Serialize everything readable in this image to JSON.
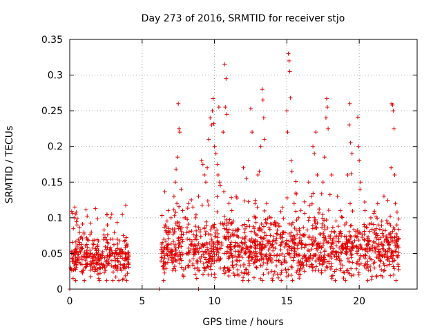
{
  "chart_data": {
    "type": "scatter",
    "title": "Day 273 of 2016, SRMTID for receiver stjo",
    "xlabel": "GPS time / hours",
    "ylabel": "SRMTID / TECUs",
    "xlim": [
      0,
      24
    ],
    "ylim": [
      0,
      0.35
    ],
    "grid": true,
    "x_ticks": [
      0,
      5,
      10,
      15,
      20
    ],
    "x_tick_labels": [
      "0",
      "5",
      "10",
      "15",
      "20"
    ],
    "y_ticks": [
      0,
      0.05,
      0.1,
      0.15,
      0.2,
      0.25,
      0.3,
      0.35
    ],
    "y_tick_labels": [
      "0",
      "0.05",
      "0.1",
      "0.15",
      "0.2",
      "0.25",
      "0.3",
      "0.35"
    ],
    "marker": "plus",
    "marker_color": "#e00000",
    "series": [
      {
        "name": "SRMTID",
        "segments": [
          {
            "x_start": 0.0,
            "x_end": 4.1,
            "base": 0.045,
            "spread": 0.022
          },
          {
            "x_start": 6.3,
            "x_end": 22.8,
            "base": 0.055,
            "spread": 0.028
          }
        ],
        "points": [
          [
            0.0,
            0.0
          ],
          [
            6.2,
            0.0
          ],
          [
            8.9,
            0.0
          ],
          [
            0.3,
            0.1
          ],
          [
            0.35,
            0.115
          ],
          [
            0.45,
            0.108
          ],
          [
            0.5,
            0.09
          ],
          [
            0.25,
            0.085
          ],
          [
            2.8,
            0.1
          ],
          [
            2.9,
            0.105
          ],
          [
            2.6,
            0.09
          ],
          [
            3.7,
            0.075
          ],
          [
            6.6,
            0.09
          ],
          [
            6.8,
            0.11
          ],
          [
            7.0,
            0.1
          ],
          [
            7.2,
            0.13
          ],
          [
            7.3,
            0.15
          ],
          [
            7.35,
            0.168
          ],
          [
            7.45,
            0.185
          ],
          [
            7.5,
            0.26
          ],
          [
            7.55,
            0.225
          ],
          [
            7.6,
            0.22
          ],
          [
            7.7,
            0.14
          ],
          [
            7.4,
            0.12
          ],
          [
            7.8,
            0.11
          ],
          [
            8.0,
            0.1
          ],
          [
            8.2,
            0.12
          ],
          [
            8.5,
            0.115
          ],
          [
            8.7,
            0.1
          ],
          [
            8.9,
            0.13
          ],
          [
            9.1,
            0.18
          ],
          [
            9.2,
            0.175
          ],
          [
            9.3,
            0.16
          ],
          [
            9.4,
            0.15
          ],
          [
            9.5,
            0.17
          ],
          [
            9.6,
            0.21
          ],
          [
            9.7,
            0.24
          ],
          [
            9.8,
            0.23
          ],
          [
            9.85,
            0.25
          ],
          [
            9.9,
            0.267
          ],
          [
            9.95,
            0.232
          ],
          [
            10.0,
            0.2
          ],
          [
            10.1,
            0.19
          ],
          [
            10.2,
            0.175
          ],
          [
            10.25,
            0.16
          ],
          [
            10.3,
            0.255
          ],
          [
            10.35,
            0.15
          ],
          [
            10.4,
            0.145
          ],
          [
            10.6,
            0.22
          ],
          [
            10.7,
            0.315
          ],
          [
            10.75,
            0.255
          ],
          [
            10.8,
            0.295
          ],
          [
            10.85,
            0.245
          ],
          [
            11.0,
            0.12
          ],
          [
            11.2,
            0.11
          ],
          [
            11.5,
            0.13
          ],
          [
            12.0,
            0.17
          ],
          [
            12.2,
            0.155
          ],
          [
            12.5,
            0.253
          ],
          [
            12.6,
            0.22
          ],
          [
            12.8,
            0.12
          ],
          [
            13.0,
            0.16
          ],
          [
            13.1,
            0.165
          ],
          [
            13.2,
            0.2
          ],
          [
            13.3,
            0.28
          ],
          [
            13.35,
            0.265
          ],
          [
            13.4,
            0.24
          ],
          [
            13.45,
            0.21
          ],
          [
            13.6,
            0.12
          ],
          [
            13.9,
            0.1
          ],
          [
            14.2,
            0.09
          ],
          [
            15.0,
            0.25
          ],
          [
            15.1,
            0.33
          ],
          [
            15.15,
            0.32
          ],
          [
            15.2,
            0.305
          ],
          [
            15.25,
            0.268
          ],
          [
            15.05,
            0.22
          ],
          [
            15.3,
            0.18
          ],
          [
            15.35,
            0.165
          ],
          [
            15.5,
            0.12
          ],
          [
            15.8,
            0.1
          ],
          [
            16.5,
            0.15
          ],
          [
            16.7,
            0.13
          ],
          [
            16.8,
            0.2
          ],
          [
            16.9,
            0.19
          ],
          [
            17.0,
            0.22
          ],
          [
            17.1,
            0.16
          ],
          [
            17.5,
            0.15
          ],
          [
            17.6,
            0.185
          ],
          [
            17.7,
            0.24
          ],
          [
            17.75,
            0.267
          ],
          [
            17.8,
            0.255
          ],
          [
            17.85,
            0.225
          ],
          [
            18.1,
            0.16
          ],
          [
            18.5,
            0.13
          ],
          [
            18.7,
            0.11
          ],
          [
            19.2,
            0.16
          ],
          [
            19.3,
            0.23
          ],
          [
            19.35,
            0.26
          ],
          [
            19.4,
            0.205
          ],
          [
            19.5,
            0.19
          ],
          [
            19.9,
            0.241
          ],
          [
            19.95,
            0.2
          ],
          [
            20.0,
            0.18
          ],
          [
            20.05,
            0.14
          ],
          [
            20.1,
            0.15
          ],
          [
            20.4,
            0.11
          ],
          [
            20.8,
            0.1
          ],
          [
            21.3,
            0.09
          ],
          [
            22.2,
            0.17
          ],
          [
            22.25,
            0.26
          ],
          [
            22.3,
            0.258
          ],
          [
            22.35,
            0.25
          ],
          [
            22.4,
            0.225
          ],
          [
            22.45,
            0.16
          ],
          [
            22.5,
            0.12
          ],
          [
            22.6,
            0.09
          ],
          [
            22.7,
            0.07
          ]
        ]
      }
    ]
  }
}
